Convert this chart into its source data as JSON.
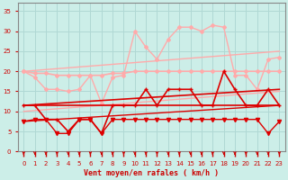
{
  "bg_color": "#cceee8",
  "grid_color": "#b0d8d4",
  "xlabel": "Vent moyen/en rafales ( km/h )",
  "xlabel_color": "#cc0000",
  "tick_color": "#cc0000",
  "spine_color": "#888888",
  "xlim": [
    -0.5,
    23.5
  ],
  "ylim": [
    0,
    37
  ],
  "yticks": [
    0,
    5,
    10,
    15,
    20,
    25,
    30,
    35
  ],
  "xticks": [
    0,
    1,
    2,
    3,
    4,
    5,
    6,
    7,
    8,
    9,
    10,
    11,
    12,
    13,
    14,
    15,
    16,
    17,
    18,
    19,
    20,
    21,
    22,
    23
  ],
  "series": [
    {
      "label": "trend_light_high",
      "color": "#ffaaaa",
      "linewidth": 1.0,
      "marker": null,
      "data_x": [
        0,
        23
      ],
      "data_y": [
        20.0,
        25.0
      ]
    },
    {
      "label": "trend_light_low",
      "color": "#ffaaaa",
      "linewidth": 1.0,
      "marker": null,
      "data_x": [
        0,
        23
      ],
      "data_y": [
        10.0,
        15.0
      ]
    },
    {
      "label": "flat_light_high",
      "color": "#ffaaaa",
      "linewidth": 1.2,
      "marker": "D",
      "markersize": 2.0,
      "data_x": [
        0,
        1,
        2,
        3,
        4,
        5,
        6,
        7,
        8,
        9,
        10,
        11,
        12,
        13,
        14,
        15,
        16,
        17,
        18,
        19,
        20,
        21,
        22,
        23
      ],
      "data_y": [
        20.0,
        19.5,
        19.5,
        19.0,
        19.0,
        19.0,
        19.0,
        19.0,
        19.5,
        19.5,
        20.0,
        20.0,
        20.0,
        20.0,
        20.0,
        20.0,
        20.0,
        20.0,
        20.0,
        20.0,
        20.0,
        20.0,
        20.0,
        20.0
      ]
    },
    {
      "label": "jagged_light",
      "color": "#ffaaaa",
      "linewidth": 1.0,
      "marker": "D",
      "markersize": 2.0,
      "data_x": [
        0,
        1,
        2,
        3,
        4,
        5,
        6,
        7,
        8,
        9,
        10,
        11,
        12,
        13,
        14,
        15,
        16,
        17,
        18,
        19,
        20,
        21,
        22,
        23
      ],
      "data_y": [
        20.0,
        18.5,
        15.5,
        15.5,
        15.0,
        15.5,
        19.0,
        12.0,
        18.5,
        19.0,
        30.0,
        26.0,
        23.0,
        28.0,
        31.0,
        31.0,
        30.0,
        31.5,
        31.0,
        19.0,
        19.0,
        15.5,
        23.0,
        23.5
      ]
    },
    {
      "label": "trend_dark_high",
      "color": "#dd0000",
      "linewidth": 1.2,
      "marker": null,
      "data_x": [
        0,
        23
      ],
      "data_y": [
        11.5,
        15.5
      ]
    },
    {
      "label": "trend_dark_low",
      "color": "#dd0000",
      "linewidth": 1.0,
      "marker": null,
      "data_x": [
        0,
        23
      ],
      "data_y": [
        7.5,
        11.5
      ]
    },
    {
      "label": "flat_dark",
      "color": "#dd0000",
      "linewidth": 1.2,
      "marker": null,
      "data_x": [
        0,
        1,
        2,
        3,
        4,
        5,
        6,
        7,
        8,
        9,
        10,
        11,
        12,
        13,
        14,
        15,
        16,
        17,
        18,
        19,
        20,
        21,
        22,
        23
      ],
      "data_y": [
        11.5,
        11.5,
        11.5,
        11.5,
        11.5,
        11.5,
        11.5,
        11.5,
        11.5,
        11.5,
        11.5,
        11.5,
        11.5,
        11.5,
        11.5,
        11.5,
        11.5,
        11.5,
        11.5,
        11.5,
        11.5,
        11.5,
        11.5,
        11.5
      ]
    },
    {
      "label": "jagged_dark_high",
      "color": "#dd0000",
      "linewidth": 1.2,
      "marker": "+",
      "markersize": 3.5,
      "data_x": [
        0,
        1,
        2,
        3,
        4,
        5,
        6,
        7,
        8,
        9,
        10,
        11,
        12,
        13,
        14,
        15,
        16,
        17,
        18,
        19,
        20,
        21,
        22,
        23
      ],
      "data_y": [
        11.5,
        11.5,
        8.0,
        8.0,
        5.0,
        8.0,
        8.0,
        4.5,
        11.5,
        11.5,
        11.5,
        15.5,
        11.5,
        15.5,
        15.5,
        15.5,
        11.5,
        11.5,
        20.0,
        15.5,
        11.5,
        11.5,
        15.5,
        11.5
      ]
    },
    {
      "label": "jagged_dark_low",
      "color": "#dd0000",
      "linewidth": 1.0,
      "marker": "v",
      "markersize": 3.0,
      "data_x": [
        0,
        1,
        2,
        3,
        4,
        5,
        6,
        7,
        8,
        9,
        10,
        11,
        12,
        13,
        14,
        15,
        16,
        17,
        18,
        19,
        20,
        21,
        22,
        23
      ],
      "data_y": [
        7.5,
        8.0,
        8.0,
        4.5,
        4.5,
        8.0,
        8.0,
        4.5,
        8.0,
        8.0,
        8.0,
        8.0,
        8.0,
        8.0,
        8.0,
        8.0,
        8.0,
        8.0,
        8.0,
        8.0,
        8.0,
        8.0,
        4.5,
        7.5
      ]
    }
  ]
}
